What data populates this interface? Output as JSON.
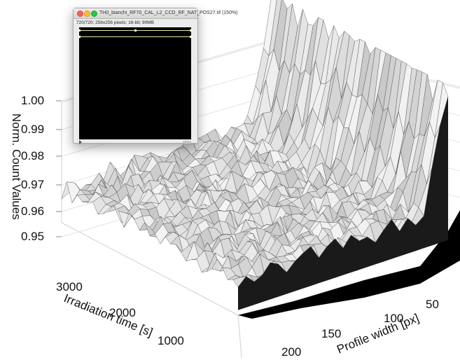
{
  "image_window": {
    "title": "TH0_bianchi_RF70_CAL_L2_CCD_RF_NAT_POS27.tif (150%)",
    "info": "720/720; 256x256 pixels; 16-bit; 90MB"
  },
  "chart_data": {
    "type": "surface",
    "title": "",
    "zlabel": "Norm. Count Values",
    "xlabel": "Irradiation time [s]",
    "ylabel": "Profile width [px]",
    "zlim": [
      0.94,
      1.0
    ],
    "z_ticks": [
      "0.95",
      "0.96",
      "0.97",
      "0.98",
      "0.99",
      "1.00"
    ],
    "x_ticks": [
      "1000",
      "2000",
      "3000"
    ],
    "y_ticks": [
      "50",
      "100",
      "150",
      "200"
    ],
    "grid": true,
    "surface_color": "#e6e6e6",
    "edge_color": "#3a3a3a",
    "underside_color": "#000000",
    "description_values": {
      "plateau_level": 0.953,
      "edge_rise_level": 1.0
    }
  }
}
